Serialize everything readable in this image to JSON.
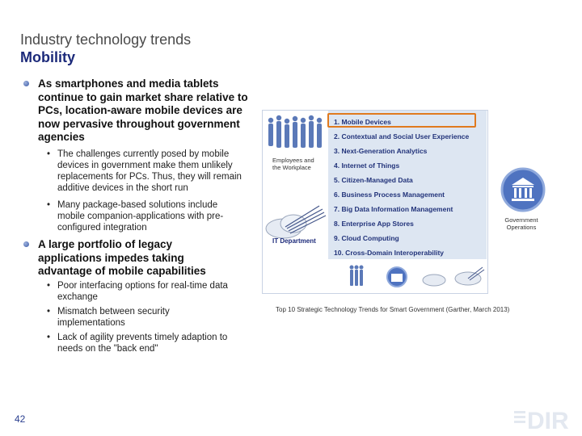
{
  "header": {
    "title": "Industry technology trends",
    "subtitle": "Mobility"
  },
  "bullets": [
    {
      "text": "As smartphones and media tablets continue to gain market share relative to PCs, location-aware mobile devices are now pervasive throughout government agencies",
      "subs": [
        "The challenges currently posed by mobile devices in government make them unlikely replacements for PCs. Thus, they will remain additive devices in the short run",
        "Many package-based solutions include mobile companion-applications with pre-configured integration"
      ]
    },
    {
      "text": "A large portfolio of legacy applications impedes taking advantage of mobile capabilities",
      "subs": [
        "Poor interfacing options for real-time data exchange",
        "Mismatch between security implementations",
        "Lack of agility prevents timely adaption to needs on the \"back end\""
      ]
    }
  ],
  "figure": {
    "employees_label": [
      "Employees and",
      "the Workplace"
    ],
    "it_label": "IT Department",
    "gov_label": [
      "Government",
      "Operations"
    ],
    "trends": [
      "1.  Mobile Devices",
      "2.  Contextual and Social User Experience",
      "3.  Next-Generation Analytics",
      "4.  Internet of Things",
      "5.  Citizen-Managed Data",
      "6.  Business Process Management",
      "7.  Big Data Information Management",
      "8.  Enterprise App Stores",
      "9.  Cloud Computing",
      "10. Cross-Domain Interoperability"
    ],
    "highlight_color": "#e07a1f"
  },
  "caption": "Top 10 Strategic Technology Trends for Smart Government (Garther, March 2013)",
  "page_number": "42",
  "logo_text": "DIR"
}
